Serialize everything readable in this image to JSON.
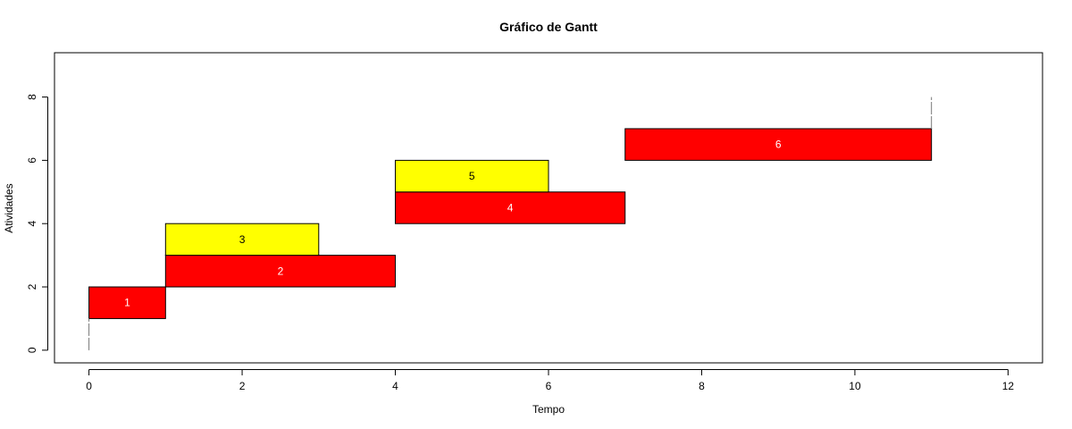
{
  "chart_data": {
    "type": "bar",
    "subtype": "gantt",
    "title": "Gráfico de Gantt",
    "xlabel": "Tempo",
    "ylabel": "Atividades",
    "xlim": [
      -0.45,
      12.45
    ],
    "ylim": [
      -0.4,
      9.4
    ],
    "xticks": [
      0,
      2,
      4,
      6,
      8,
      10,
      12
    ],
    "yticks": [
      0,
      2,
      4,
      6,
      8
    ],
    "grid": false,
    "colors": {
      "critical": "#ff0000",
      "slack": "#ffff00",
      "critical_text": "#ffffff",
      "slack_text": "#000000"
    },
    "tasks": [
      {
        "label": "1",
        "start": 0,
        "end": 1,
        "y0": 1,
        "y1": 2,
        "color": "#ff0000",
        "text_color": "#ffffff"
      },
      {
        "label": "2",
        "start": 1,
        "end": 4,
        "y0": 2,
        "y1": 3,
        "color": "#ff0000",
        "text_color": "#ffffff"
      },
      {
        "label": "3",
        "start": 1,
        "end": 3,
        "y0": 3,
        "y1": 4,
        "color": "#ffff00",
        "text_color": "#000000"
      },
      {
        "label": "4",
        "start": 4,
        "end": 7,
        "y0": 4,
        "y1": 5,
        "color": "#ff0000",
        "text_color": "#ffffff"
      },
      {
        "label": "5",
        "start": 4,
        "end": 6,
        "y0": 5,
        "y1": 6,
        "color": "#ffff00",
        "text_color": "#000000"
      },
      {
        "label": "6",
        "start": 7,
        "end": 11,
        "y0": 6,
        "y1": 7,
        "color": "#ff0000",
        "text_color": "#ffffff"
      }
    ],
    "markers": [
      {
        "x": 0,
        "y0": 0,
        "y1": 1
      },
      {
        "x": 11,
        "y0": 7,
        "y1": 8
      }
    ]
  }
}
